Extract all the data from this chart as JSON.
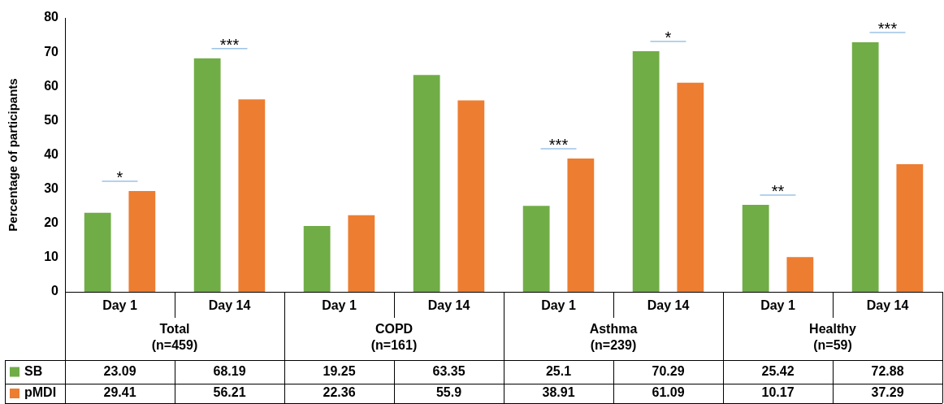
{
  "chart_data": {
    "type": "bar",
    "ylabel": "Percentage of participants",
    "categories": [
      "Day 1",
      "Day 14",
      "Day 1",
      "Day 14",
      "Day 1",
      "Day 14",
      "Day 1",
      "Day 14"
    ],
    "series": [
      {
        "name": "SB",
        "color": "#70ad47",
        "values": [
          23.09,
          68.19,
          19.25,
          63.35,
          25.1,
          70.29,
          25.42,
          72.88
        ]
      },
      {
        "name": "pMDI",
        "color": "#ed7d31",
        "values": [
          29.41,
          56.21,
          22.36,
          55.9,
          38.91,
          61.09,
          10.17,
          37.29
        ]
      }
    ],
    "ylim": [
      0,
      80
    ],
    "yticks": [
      0,
      10,
      20,
      30,
      40,
      50,
      60,
      70,
      80
    ],
    "grid": false,
    "legend": "bottom left",
    "data_labels": true,
    "annotations": [
      "Total\n(n=459)",
      "COPD\n(n=161)",
      "Asthma\n(n=239)",
      "Healthy\n(n=59)",
      "*",
      "***",
      "***",
      "*",
      "**",
      "***"
    ]
  }
}
